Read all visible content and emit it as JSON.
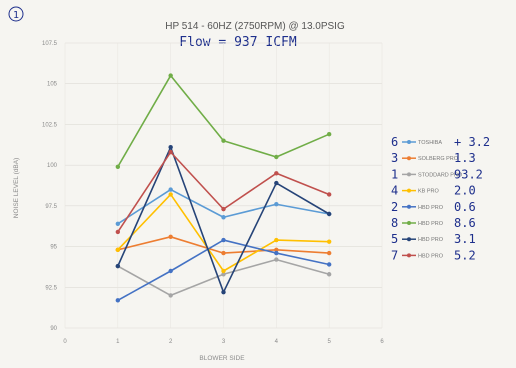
{
  "page_marker": "1",
  "chart_data": {
    "type": "line",
    "title": "HP 514 - 60HZ (2750RPM) @ 13.0PSIG",
    "annotation": "Flow = 937 ICFM",
    "xlabel": "BLOWER SIDE",
    "ylabel": "NOISE LEVEL (dBA)",
    "xlim": [
      0,
      6
    ],
    "ylim": [
      90,
      107.5
    ],
    "x_ticks": [
      "0",
      "1",
      "2",
      "3",
      "4",
      "5",
      "6"
    ],
    "y_ticks": [
      "90",
      "92.5",
      "95",
      "97.5",
      "100",
      "102.5",
      "105",
      "107.5"
    ],
    "x": [
      1,
      2,
      3,
      4,
      5
    ],
    "legend_position": "right",
    "grid": true,
    "series": [
      {
        "name": "TOSHIBA",
        "color": "#5b9bd5",
        "values": [
          96.4,
          98.5,
          96.8,
          97.6,
          97.0
        ],
        "note": "6",
        "value_note": "+ 3.2"
      },
      {
        "name": "SOLBERG PRO",
        "color": "#ed7d31",
        "values": [
          94.8,
          95.6,
          94.6,
          94.8,
          94.6
        ],
        "note": "3",
        "value_note": "1.3"
      },
      {
        "name": "STODDARD PRO",
        "color": "#a5a5a5",
        "values": [
          93.8,
          92.0,
          93.3,
          94.2,
          93.3
        ],
        "note": "1",
        "value_note": "93.2"
      },
      {
        "name": "KB PRO",
        "color": "#ffc000",
        "values": [
          94.8,
          98.2,
          93.5,
          95.4,
          95.3
        ],
        "note": "4",
        "value_note": "2.0"
      },
      {
        "name": "HBD PRO",
        "color": "#4472c4",
        "values": [
          91.7,
          93.5,
          95.4,
          94.6,
          93.9
        ],
        "note": "2",
        "value_note": "0.6"
      },
      {
        "name": "HBD PRO",
        "color": "#70ad47",
        "values": [
          99.9,
          105.5,
          101.5,
          100.5,
          101.9
        ],
        "note": "8",
        "value_note": "8.6"
      },
      {
        "name": "HBD PRO",
        "color": "#264478",
        "values": [
          93.8,
          101.1,
          92.2,
          98.9,
          97.0
        ],
        "note": "5",
        "value_note": "3.1"
      },
      {
        "name": "HBD PRO",
        "color": "#c0504d",
        "values": [
          95.9,
          100.8,
          97.3,
          99.5,
          98.2
        ],
        "note": "7",
        "value_note": "5.2"
      }
    ]
  }
}
